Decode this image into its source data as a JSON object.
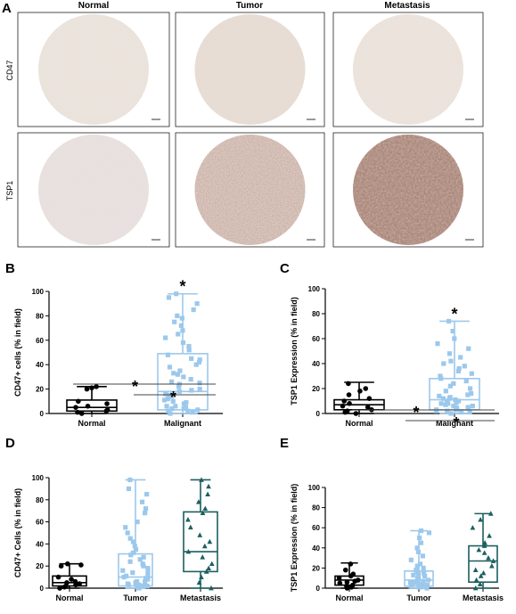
{
  "figure": {
    "panel_letters": [
      "A",
      "B",
      "C",
      "D",
      "E"
    ],
    "column_headers": [
      "Normal",
      "Tumor",
      "Metastasis"
    ],
    "row_labels": [
      "CD47",
      "TSP1"
    ],
    "colors": {
      "normal": "#000000",
      "malignant": "#9cc8ec",
      "tumor": "#9cc8ec",
      "metastasis": "#1d5f5f",
      "tissue_light": "#e6dcd3",
      "tissue_dark": "#6e4538"
    }
  },
  "chart_data": [
    {
      "id": "B",
      "type": "box",
      "ylabel": "CD47+ cells (% in field)",
      "ylim": [
        0,
        100
      ],
      "yticks": [
        0,
        20,
        40,
        60,
        80,
        100
      ],
      "categories": [
        "Normal",
        "Malignant"
      ],
      "boxes": [
        {
          "min": 0,
          "q1": 2,
          "median": 5,
          "q3": 11,
          "max": 22
        },
        {
          "min": 0,
          "q1": 3,
          "median": 18,
          "q3": 49,
          "max": 98
        }
      ],
      "points": [
        [
          2,
          3,
          5,
          6,
          8,
          10,
          20,
          21,
          22,
          0,
          1
        ],
        [
          0,
          1,
          2,
          3,
          4,
          5,
          6,
          8,
          10,
          12,
          14,
          16,
          18,
          20,
          22,
          24,
          26,
          28,
          30,
          32,
          35,
          38,
          40,
          42,
          45,
          48,
          52,
          55,
          58,
          62,
          65,
          68,
          72,
          75,
          78,
          80,
          85,
          90,
          95,
          98,
          2,
          4,
          6,
          9,
          11,
          15,
          19,
          25,
          33,
          44
        ]
      ],
      "significance": [
        "",
        "*"
      ]
    },
    {
      "id": "C",
      "type": "box",
      "ylabel": "TSP1 Expression (% in field)",
      "ylim": [
        0,
        100
      ],
      "yticks": [
        0,
        20,
        40,
        60,
        80,
        100
      ],
      "categories": [
        "Normal",
        "Malignant"
      ],
      "boxes": [
        {
          "min": 0,
          "q1": 3,
          "median": 7,
          "q3": 11,
          "max": 25
        },
        {
          "min": 0,
          "q1": 3,
          "median": 11,
          "q3": 28,
          "max": 74
        }
      ],
      "points": [
        [
          1,
          3,
          5,
          6,
          8,
          10,
          12,
          15,
          18,
          20,
          24,
          0,
          2
        ],
        [
          0,
          1,
          2,
          3,
          4,
          5,
          6,
          7,
          8,
          9,
          10,
          11,
          12,
          13,
          14,
          15,
          16,
          18,
          20,
          22,
          24,
          26,
          28,
          30,
          32,
          34,
          36,
          38,
          40,
          42,
          45,
          48,
          52,
          56,
          60,
          66,
          74,
          2,
          4,
          6,
          8,
          10,
          12,
          5,
          3,
          1
        ]
      ],
      "significance": [
        "",
        "*"
      ]
    },
    {
      "id": "D",
      "type": "box",
      "ylabel": "CD47+ Cells (% in field)",
      "ylim": [
        0,
        100
      ],
      "yticks": [
        0,
        20,
        40,
        60,
        80,
        100
      ],
      "categories": [
        "Normal",
        "Tumor",
        "Metastasis"
      ],
      "boxes": [
        {
          "min": 0,
          "q1": 2,
          "median": 5,
          "q3": 11,
          "max": 22
        },
        {
          "min": 0,
          "q1": 2,
          "median": 10,
          "q3": 31,
          "max": 98
        },
        {
          "min": 0,
          "q1": 15,
          "median": 33,
          "q3": 69,
          "max": 98
        }
      ],
      "points": [
        [
          2,
          3,
          5,
          6,
          8,
          10,
          20,
          21,
          22,
          0,
          1,
          4
        ],
        [
          0,
          1,
          2,
          3,
          4,
          5,
          6,
          8,
          10,
          12,
          14,
          16,
          18,
          20,
          22,
          24,
          26,
          28,
          30,
          32,
          35,
          38,
          42,
          45,
          50,
          55,
          60,
          68,
          72,
          78,
          85,
          90,
          98,
          2,
          4,
          6,
          9,
          11,
          15,
          3
        ],
        [
          0,
          5,
          10,
          15,
          18,
          22,
          28,
          33,
          38,
          42,
          48,
          55,
          62,
          68,
          72,
          78,
          85,
          92,
          98
        ]
      ],
      "comparisons": [
        {
          "label": "*",
          "from": "Normal",
          "to": "Metastasis"
        },
        {
          "label": "*",
          "from": "Tumor",
          "to": "Metastasis"
        }
      ]
    },
    {
      "id": "E",
      "type": "box",
      "ylabel": "TSP1 Expression (% in field)",
      "ylim": [
        0,
        100
      ],
      "yticks": [
        0,
        20,
        40,
        60,
        80,
        100
      ],
      "categories": [
        "Normal",
        "Tumor",
        "Metastasis"
      ],
      "boxes": [
        {
          "min": 0,
          "q1": 3,
          "median": 8,
          "q3": 12,
          "max": 25
        },
        {
          "min": 0,
          "q1": 2,
          "median": 8,
          "q3": 17,
          "max": 57
        },
        {
          "min": 0,
          "q1": 6,
          "median": 27,
          "q3": 42,
          "max": 74
        }
      ],
      "points": [
        [
          1,
          3,
          5,
          6,
          8,
          10,
          12,
          14,
          18,
          24,
          0,
          2,
          7
        ],
        [
          0,
          1,
          2,
          3,
          4,
          5,
          6,
          7,
          8,
          9,
          10,
          11,
          12,
          13,
          14,
          15,
          16,
          18,
          20,
          22,
          24,
          28,
          32,
          36,
          40,
          45,
          50,
          55,
          57,
          2,
          4,
          6,
          3,
          1
        ],
        [
          0,
          4,
          8,
          12,
          18,
          22,
          27,
          30,
          35,
          38,
          42,
          45,
          52,
          60,
          68,
          74,
          15
        ]
      ],
      "comparisons": [
        {
          "label": "*",
          "from": "Normal",
          "to": "Metastasis"
        },
        {
          "label": "*",
          "from": "Tumor",
          "to": "Metastasis"
        }
      ]
    }
  ]
}
